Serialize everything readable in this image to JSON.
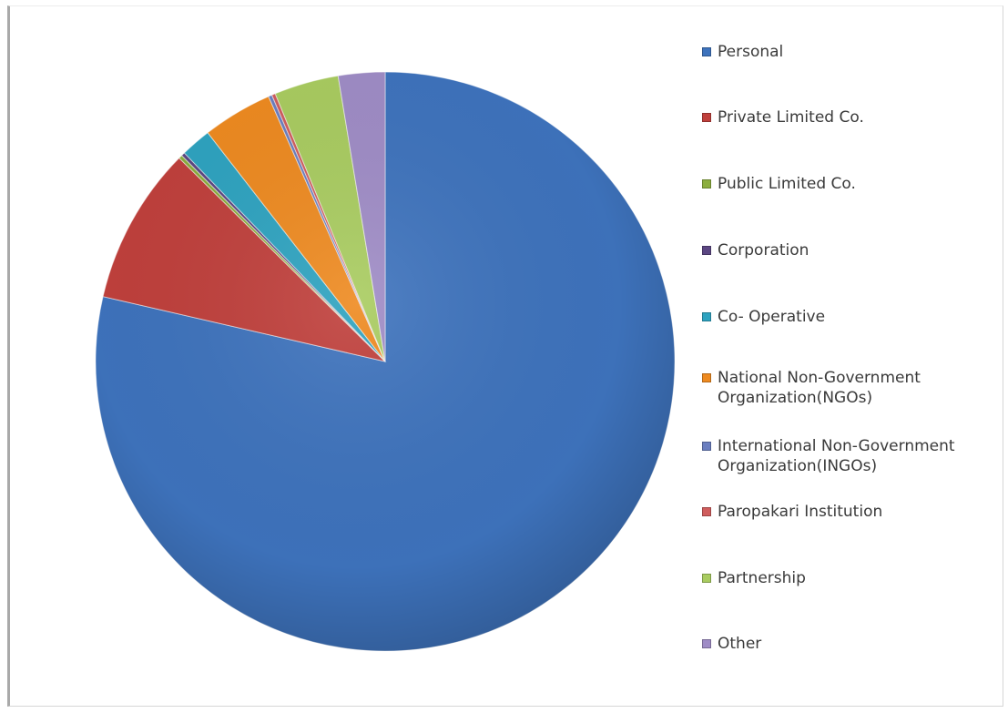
{
  "chart_data": {
    "type": "pie",
    "title": "",
    "start_angle_deg": 0,
    "direction": "clockwise",
    "legend_position": "right",
    "style": "3d-shaded",
    "slices": [
      {
        "label": "Personal",
        "value": 78.6,
        "color": "#3e73bd"
      },
      {
        "label": "Private Limited Co.",
        "value": 8.8,
        "color": "#c0403c"
      },
      {
        "label": "Public Limited Co.",
        "value": 0.2,
        "color": "#8cae3e"
      },
      {
        "label": "Corporation",
        "value": 0.2,
        "color": "#5b4682"
      },
      {
        "label": "Co- Operative",
        "value": 1.7,
        "color": "#2ea3c0"
      },
      {
        "label": "National Non-Government Organization(NGOs)",
        "value": 3.9,
        "color": "#ee8a20"
      },
      {
        "label": "International Non-Government Organization(INGOs)",
        "value": 0.2,
        "color": "#6b7fc0"
      },
      {
        "label": "Paropakari Institution",
        "value": 0.2,
        "color": "#d05d5d"
      },
      {
        "label": "Partnership",
        "value": 3.6,
        "color": "#a9cc60"
      },
      {
        "label": "Other",
        "value": 2.6,
        "color": "#9f8cc6"
      }
    ]
  }
}
